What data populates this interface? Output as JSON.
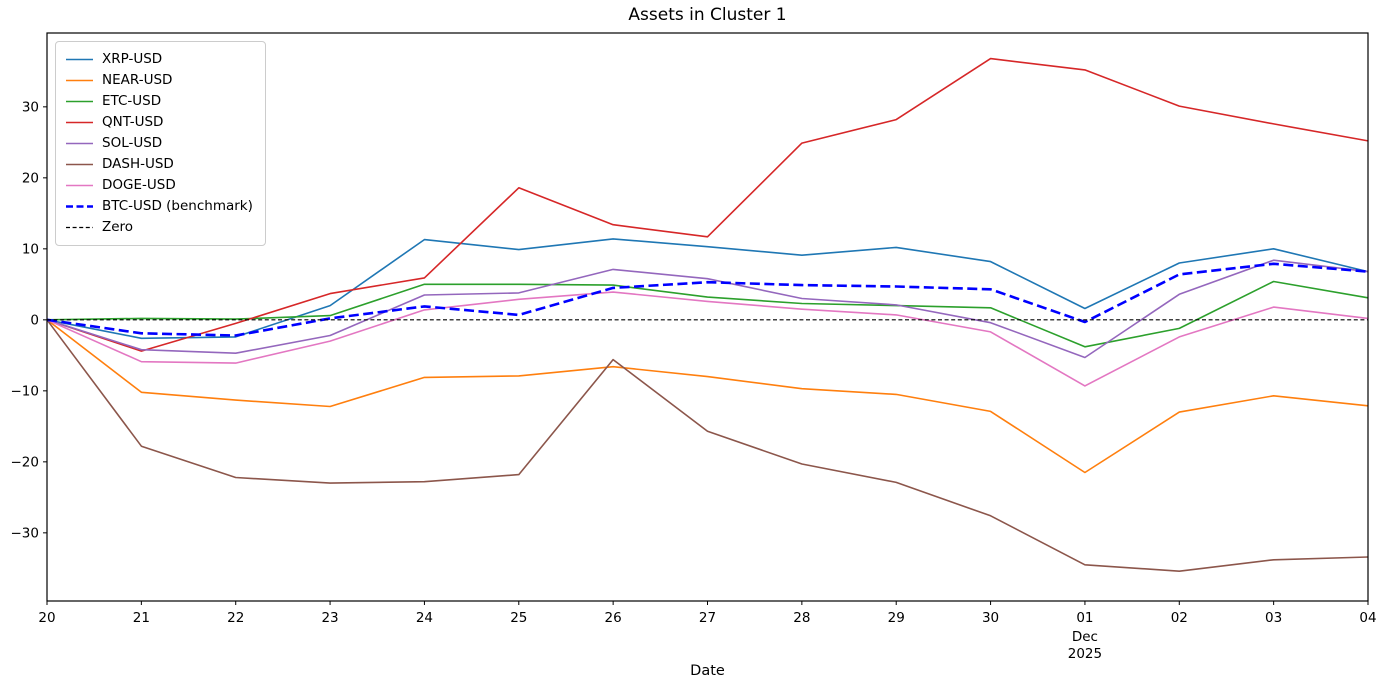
{
  "figure": {
    "title": "Assets in Cluster 1",
    "xlabel": "Date"
  },
  "chart_data": {
    "type": "line",
    "title": "Assets in Cluster 1",
    "xlabel": "Date",
    "ylabel": "",
    "grid": false,
    "legend_position": "upper left",
    "ylim": [
      -39.6,
      40.4
    ],
    "y_ticks": [
      {
        "v": 30,
        "label": "30"
      },
      {
        "v": 20,
        "label": "20"
      },
      {
        "v": 10,
        "label": "10"
      },
      {
        "v": 0,
        "label": "0"
      },
      {
        "v": -10,
        "label": "−10"
      },
      {
        "v": -20,
        "label": "−20"
      },
      {
        "v": -30,
        "label": "−30"
      }
    ],
    "categories": [
      "20",
      "21",
      "22",
      "23",
      "24",
      "25",
      "26",
      "27",
      "28",
      "29",
      "30",
      "01",
      "02",
      "03",
      "04"
    ],
    "x_sub_tick": {
      "index": 11,
      "lines": [
        "Dec",
        "2025"
      ]
    },
    "series": [
      {
        "name": "XRP-USD",
        "color": "#1f77b4",
        "style": "solid",
        "width": 1.6,
        "values": [
          0,
          -2.6,
          -2.4,
          2.0,
          11.3,
          9.9,
          11.4,
          10.3,
          9.1,
          10.2,
          8.2,
          1.6,
          8.0,
          10.0,
          6.8
        ]
      },
      {
        "name": "NEAR-USD",
        "color": "#ff7f0e",
        "style": "solid",
        "width": 1.6,
        "values": [
          0,
          -10.2,
          -11.3,
          -12.2,
          -8.1,
          -7.9,
          -6.6,
          -8.0,
          -9.7,
          -10.5,
          -12.9,
          -21.5,
          -13.0,
          -10.7,
          -12.1
        ]
      },
      {
        "name": "ETC-USD",
        "color": "#2ca02c",
        "style": "solid",
        "width": 1.6,
        "values": [
          0,
          0.2,
          0.1,
          0.6,
          5.0,
          5.0,
          4.9,
          3.2,
          2.3,
          2.0,
          1.7,
          -3.8,
          -1.2,
          5.4,
          3.1
        ]
      },
      {
        "name": "QNT-USD",
        "color": "#d62728",
        "style": "solid",
        "width": 1.6,
        "values": [
          0,
          -4.4,
          -0.5,
          3.7,
          5.9,
          18.6,
          13.4,
          11.7,
          24.9,
          28.2,
          36.8,
          35.2,
          30.1,
          27.6,
          25.2
        ]
      },
      {
        "name": "SOL-USD",
        "color": "#9467bd",
        "style": "solid",
        "width": 1.6,
        "values": [
          0,
          -4.2,
          -4.7,
          -2.2,
          3.5,
          3.8,
          7.1,
          5.8,
          3.0,
          2.1,
          -0.4,
          -5.3,
          3.6,
          8.4,
          6.8
        ]
      },
      {
        "name": "DASH-USD",
        "color": "#8c564b",
        "style": "solid",
        "width": 1.6,
        "values": [
          0,
          -17.8,
          -22.2,
          -23.0,
          -22.8,
          -21.8,
          -5.6,
          -15.7,
          -20.3,
          -22.9,
          -27.6,
          -34.5,
          -35.4,
          -33.8,
          -33.4
        ]
      },
      {
        "name": "DOGE-USD",
        "color": "#e377c2",
        "style": "solid",
        "width": 1.6,
        "values": [
          0,
          -5.9,
          -6.1,
          -3.0,
          1.4,
          2.9,
          3.9,
          2.6,
          1.5,
          0.7,
          -1.7,
          -9.3,
          -2.4,
          1.8,
          0.2
        ]
      },
      {
        "name": "BTC-USD (benchmark)",
        "color": "#0000ff",
        "style": "dashed",
        "width": 2.6,
        "values": [
          0,
          -1.9,
          -2.2,
          0.2,
          1.9,
          0.7,
          4.5,
          5.3,
          4.9,
          4.7,
          4.3,
          -0.3,
          6.4,
          7.9,
          6.8
        ]
      },
      {
        "name": "Zero",
        "color": "#000000",
        "style": "dashed-fine",
        "width": 1.2,
        "values": [
          0,
          0,
          0,
          0,
          0,
          0,
          0,
          0,
          0,
          0,
          0,
          0,
          0,
          0,
          0
        ]
      }
    ]
  }
}
